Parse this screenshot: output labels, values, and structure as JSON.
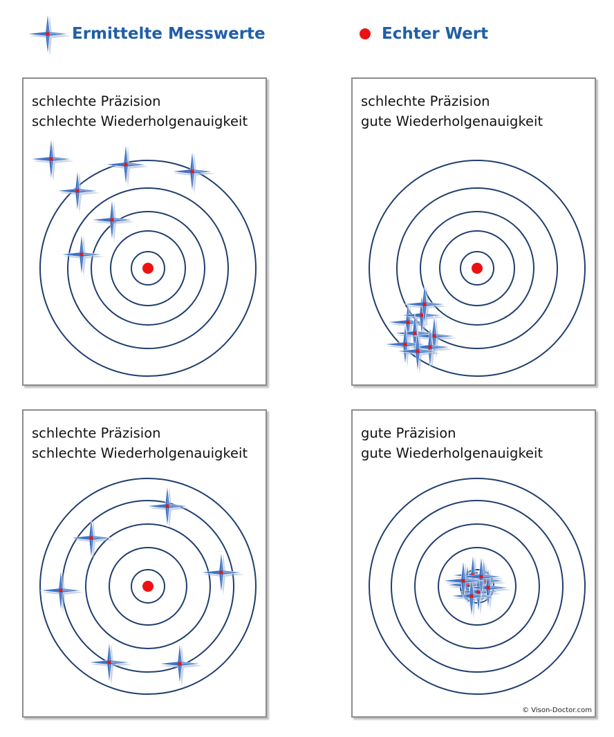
{
  "legend": {
    "measured_label": "Ermittelte Messwerte",
    "true_label": "Echter Wert"
  },
  "colors": {
    "ring": "#1f3e6e",
    "true_dot": "#ee1111",
    "star": "#3f73c4",
    "label": "#1f5fa6"
  },
  "panels": [
    {
      "line1": "schlechte Präzision",
      "line2": "schlechte Wiederholgenauigkeit"
    },
    {
      "line1": "schlechte Präzision",
      "line2": "gute Wiederholgenauigkeit"
    },
    {
      "line1": "schlechte Präzision",
      "line2": "schlechte Wiederholgenauigkeit"
    },
    {
      "line1": "gute Präzision",
      "line2": "gute Wiederholgenauigkeit"
    }
  ],
  "copyright": "© Vison-Doctor.com"
}
